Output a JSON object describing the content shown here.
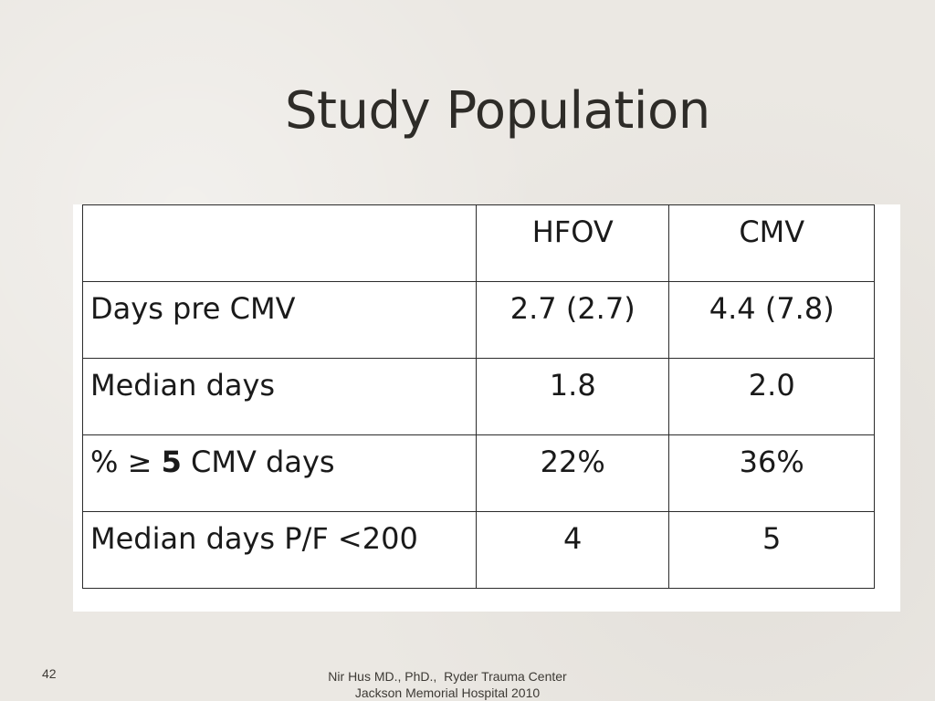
{
  "slide": {
    "title": "Study Population",
    "page_number": "42",
    "footer_line1": "Nir Hus MD., PhD.,  Ryder Trauma Center",
    "footer_line2": "Jackson Memorial Hospital 2010"
  },
  "table": {
    "headers": [
      "",
      "HFOV",
      "CMV"
    ],
    "rows": [
      {
        "label": "Days pre CMV",
        "hfov": "2.7 (2.7)",
        "cmv": "4.4 (7.8)"
      },
      {
        "label": "Median days",
        "hfov": "1.8",
        "cmv": "2.0"
      },
      {
        "label_prefix": "% ≥ ",
        "label_bold": "5",
        "label_suffix": " CMV days",
        "hfov": "22%",
        "cmv": "36%"
      },
      {
        "label": "Median days P/F <200",
        "hfov": "4",
        "cmv": "5"
      }
    ]
  }
}
